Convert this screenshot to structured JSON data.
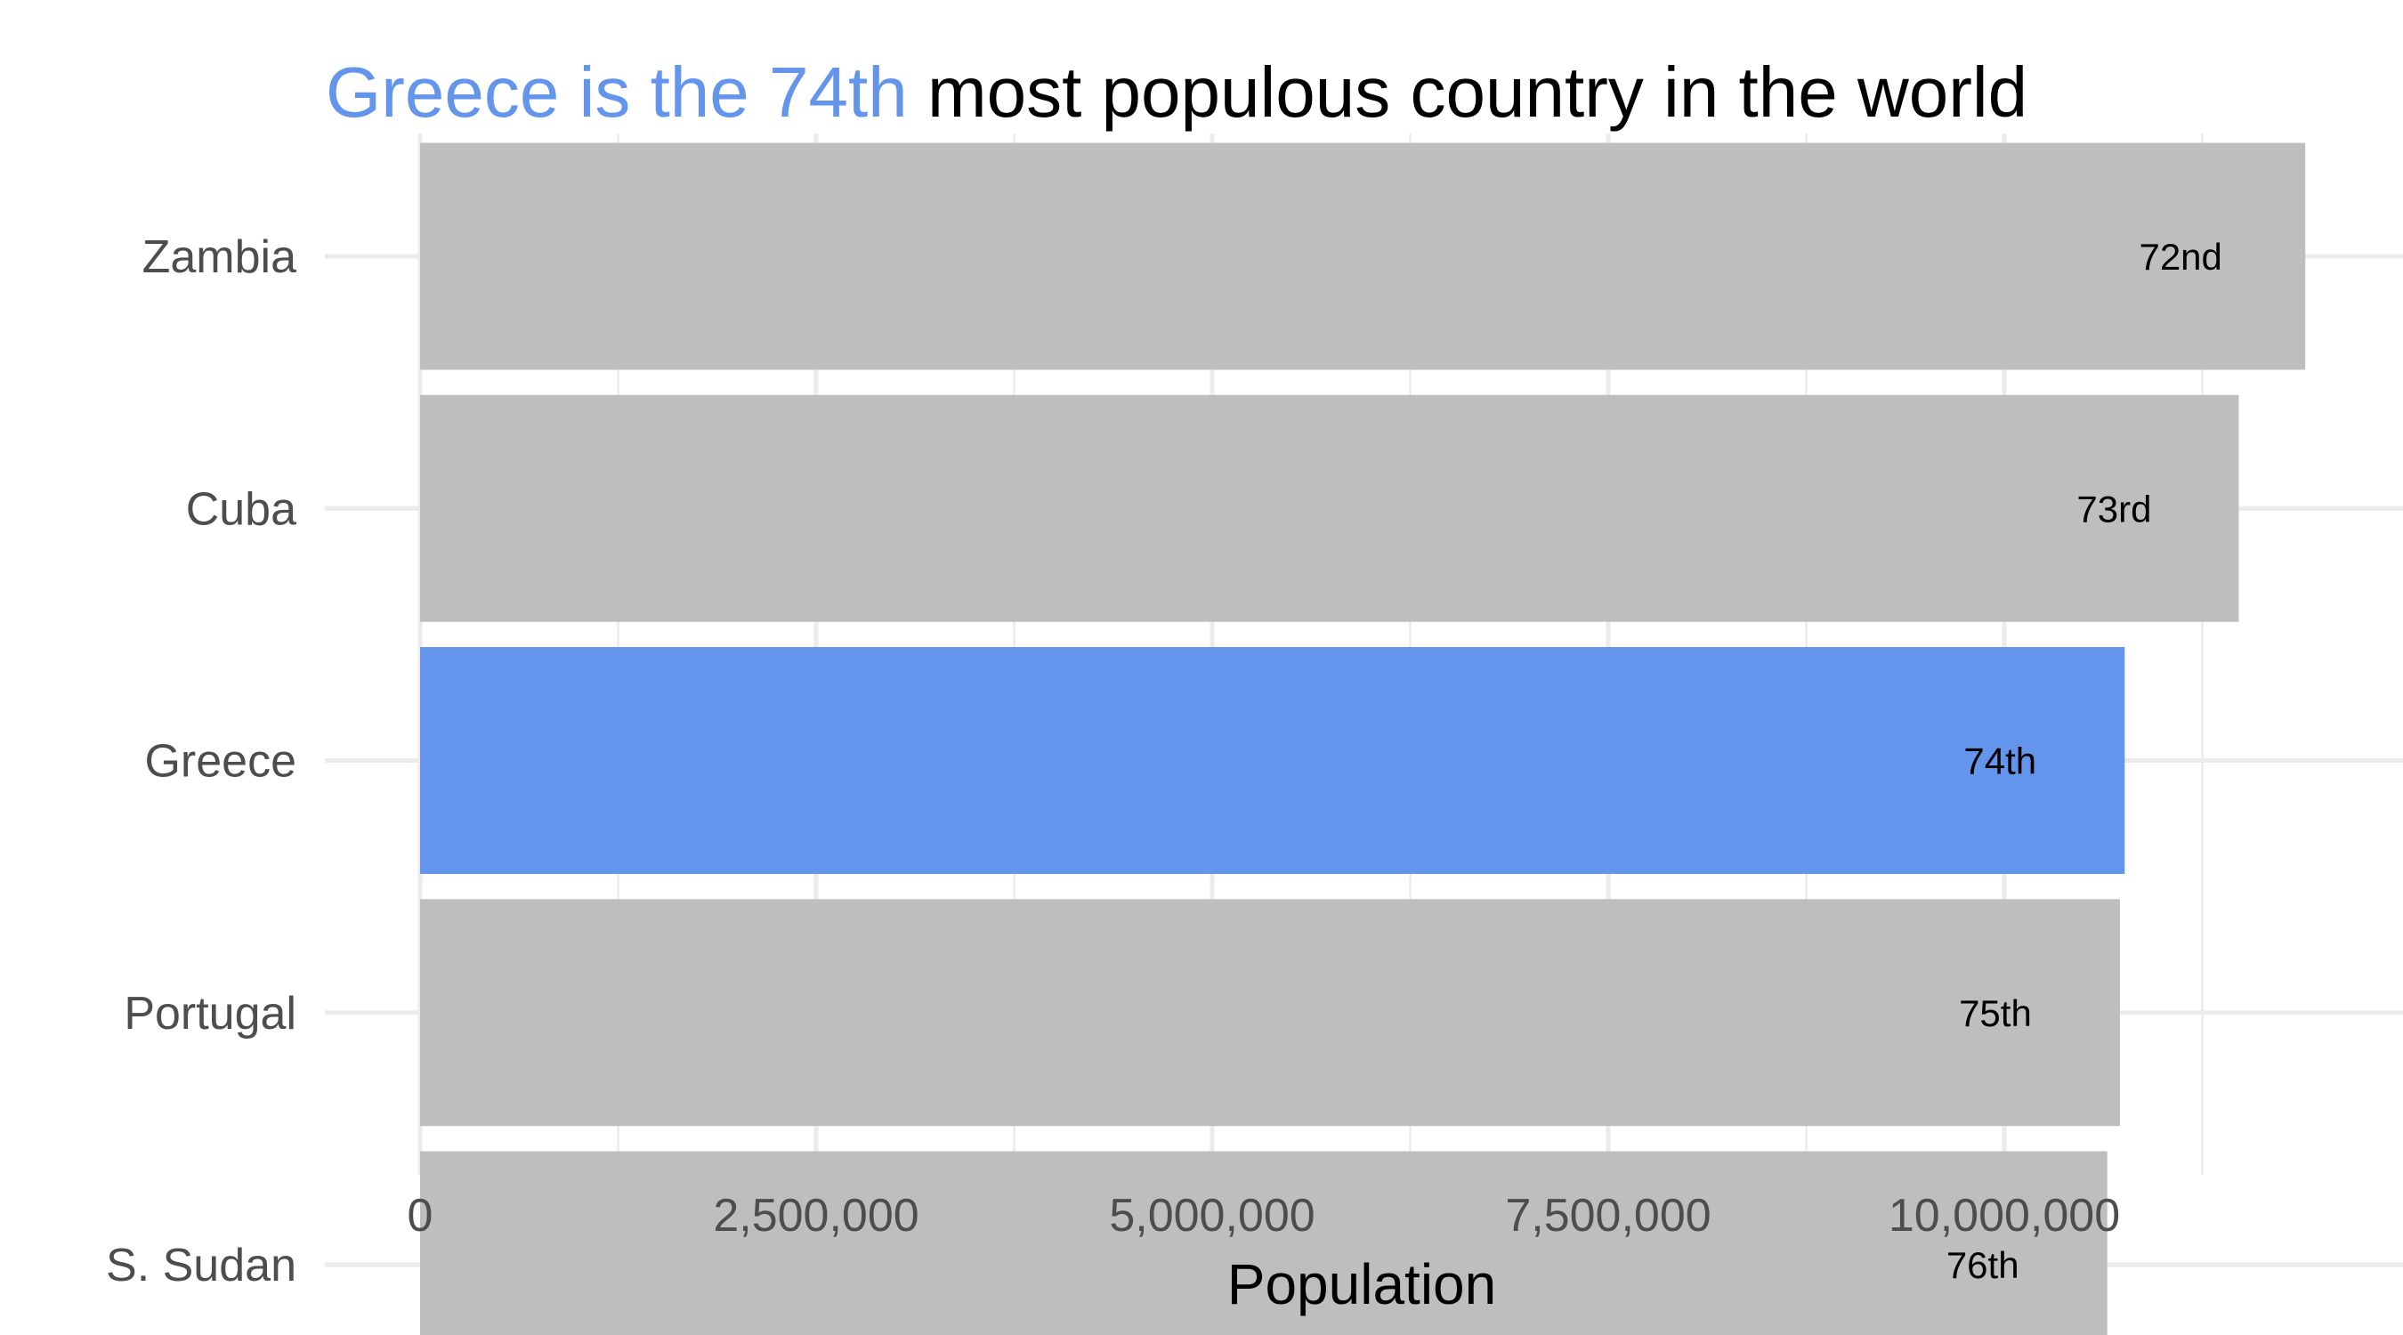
{
  "title": {
    "highlight": "Greece is the 74th",
    "rest": " most populous country in the world"
  },
  "colors": {
    "highlight": "#6495ED",
    "default_bar": "#BEBEBE",
    "grid": "#EBEBEB",
    "text": "#000000",
    "tick_text": "#4D4D4D"
  },
  "chart_data": {
    "type": "bar",
    "orientation": "horizontal",
    "categories": [
      "Zambia",
      "Cuba",
      "Greece",
      "Portugal",
      "S. Sudan"
    ],
    "values": [
      11900000,
      11480000,
      10760000,
      10730000,
      10650000
    ],
    "labels": [
      "72nd",
      "73rd",
      "74th",
      "75th",
      "76th"
    ],
    "highlight": "Greece",
    "xlabel": "Population",
    "ylabel": "",
    "xlim": [
      0,
      12500000
    ],
    "xticks": [
      0,
      2500000,
      5000000,
      7500000,
      10000000
    ],
    "xtick_labels": [
      "0",
      "2,500,000",
      "5,000,000",
      "7,500,000",
      "10,000,000"
    ],
    "grid": true,
    "legend": "none"
  }
}
